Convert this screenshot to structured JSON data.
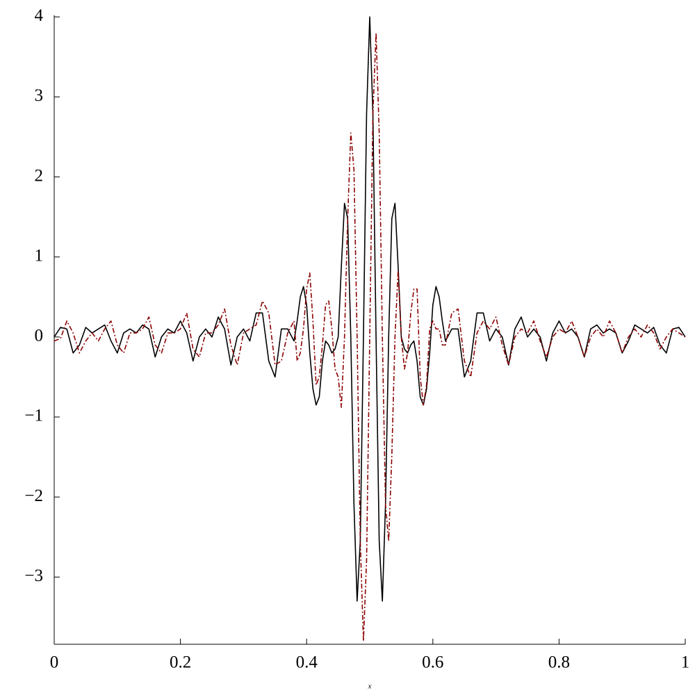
{
  "chart_data": {
    "type": "line",
    "x_label": "x",
    "x": [
      0,
      0.01,
      0.02,
      0.03,
      0.04,
      0.05,
      0.06,
      0.07,
      0.08,
      0.09,
      0.1,
      0.11,
      0.12,
      0.13,
      0.14,
      0.15,
      0.16,
      0.17,
      0.18,
      0.19,
      0.2,
      0.21,
      0.22,
      0.23,
      0.24,
      0.25,
      0.26,
      0.27,
      0.28,
      0.29,
      0.3,
      0.31,
      0.32,
      0.33,
      0.34,
      0.35,
      0.36,
      0.37,
      0.38,
      0.385,
      0.39,
      0.395,
      0.4,
      0.405,
      0.41,
      0.415,
      0.42,
      0.425,
      0.43,
      0.435,
      0.44,
      0.445,
      0.45,
      0.455,
      0.46,
      0.465,
      0.47,
      0.475,
      0.48,
      0.485,
      0.49,
      0.495,
      0.5,
      0.505,
      0.51,
      0.515,
      0.52,
      0.525,
      0.53,
      0.535,
      0.54,
      0.545,
      0.55,
      0.555,
      0.56,
      0.565,
      0.57,
      0.575,
      0.58,
      0.585,
      0.59,
      0.595,
      0.6,
      0.605,
      0.61,
      0.615,
      0.62,
      0.63,
      0.64,
      0.65,
      0.66,
      0.67,
      0.68,
      0.69,
      0.7,
      0.71,
      0.72,
      0.73,
      0.74,
      0.75,
      0.76,
      0.77,
      0.78,
      0.79,
      0.8,
      0.81,
      0.82,
      0.83,
      0.84,
      0.85,
      0.86,
      0.87,
      0.88,
      0.89,
      0.9,
      0.91,
      0.92,
      0.93,
      0.94,
      0.95,
      0.96,
      0.97,
      0.98,
      0.99,
      1
    ],
    "series": [
      {
        "color": "#000000",
        "style": "solid",
        "values": [
          0,
          0.12,
          0.1,
          -0.2,
          -0.1,
          0.12,
          0.05,
          0.1,
          0.15,
          -0.05,
          -0.2,
          0.05,
          0.1,
          0.05,
          0.15,
          0.1,
          -0.25,
          0,
          0.1,
          0.05,
          0.2,
          0.05,
          -0.3,
          0,
          0.1,
          0,
          0.25,
          0.1,
          -0.35,
          0,
          0.1,
          -0.05,
          0.3,
          0.3,
          -0.3,
          -0.5,
          0.1,
          0.1,
          -0.05,
          0.2,
          0.5,
          0.63,
          0.4,
          -0.2,
          -0.65,
          -0.85,
          -0.75,
          -0.3,
          -0.05,
          -0.1,
          -0.2,
          -0.15,
          0,
          0.88,
          1.67,
          1.48,
          0,
          -2.09,
          -3.3,
          -2.55,
          0,
          2.79,
          4,
          2.79,
          0,
          -2.55,
          -3.3,
          -2.09,
          0,
          1.48,
          1.67,
          0.88,
          0,
          -0.15,
          -0.2,
          -0.1,
          -0.05,
          -0.3,
          -0.75,
          -0.85,
          -0.65,
          -0.2,
          0.4,
          0.63,
          0.5,
          0.2,
          -0.05,
          0.1,
          0.1,
          -0.5,
          -0.3,
          0.3,
          0.3,
          -0.05,
          0.1,
          0,
          -0.35,
          0.1,
          0.25,
          0,
          0.1,
          0,
          -0.3,
          0.05,
          0.2,
          0.05,
          0.1,
          0,
          -0.25,
          0.1,
          0.15,
          0.05,
          0.1,
          0.05,
          -0.2,
          -0.05,
          0.15,
          0.1,
          0.05,
          0.12,
          -0.1,
          -0.2,
          0.1,
          0.12,
          0
        ]
      },
      {
        "color": "#8b0000",
        "style": "dashdot",
        "values": [
          -0.05,
          -0.02,
          0.2,
          0.05,
          -0.2,
          -0.05,
          0.05,
          -0.05,
          0.1,
          0.2,
          -0.1,
          -0.2,
          0.05,
          0.05,
          0.1,
          0.25,
          -0.1,
          -0.2,
          0.05,
          0.05,
          0.1,
          0.3,
          -0.15,
          -0.25,
          0.05,
          0.05,
          0.15,
          0.35,
          -0.1,
          -0.35,
          0.05,
          0.1,
          0.15,
          0.45,
          0.3,
          -0.35,
          -0.3,
          0.05,
          0.2,
          -0.3,
          -0.2,
          0.1,
          0.6,
          0.8,
          0.2,
          -0.6,
          -0.5,
          -0.1,
          0.4,
          0.45,
          0.1,
          -0.4,
          -0.5,
          -0.88,
          0,
          1.48,
          2.55,
          2.09,
          0,
          -2.55,
          -3.8,
          -2.79,
          0,
          2.79,
          3.8,
          2.55,
          0,
          -2.09,
          -2.55,
          -1.48,
          0,
          0.83,
          0,
          -0.4,
          -0.2,
          0.3,
          0.6,
          0.6,
          -0.5,
          -0.85,
          -0.6,
          0.1,
          0.2,
          0.1,
          0.1,
          -0.1,
          -0.1,
          0.3,
          0.35,
          -0.3,
          -0.5,
          0.05,
          0.2,
          0.1,
          0.25,
          -0.1,
          -0.35,
          0,
          0.1,
          0.05,
          0.2,
          -0.05,
          -0.25,
          0,
          0.1,
          0.05,
          0.2,
          0,
          -0.25,
          0,
          0.1,
          0,
          0.2,
          0.05,
          -0.2,
          0,
          0.1,
          0,
          0.15,
          0.05,
          -0.15,
          0,
          0.1,
          0.05,
          0
        ]
      }
    ],
    "xlim": [
      0,
      1
    ],
    "ylim": [
      -3.84,
      4.02
    ],
    "xticks": [
      0,
      0.2,
      0.4,
      0.6,
      0.8,
      1
    ],
    "yticks": [
      {
        "value": -3,
        "label": "−3"
      },
      {
        "value": -2,
        "label": "−2"
      },
      {
        "value": -1,
        "label": "−1"
      },
      0,
      1,
      2,
      3,
      4
    ]
  }
}
